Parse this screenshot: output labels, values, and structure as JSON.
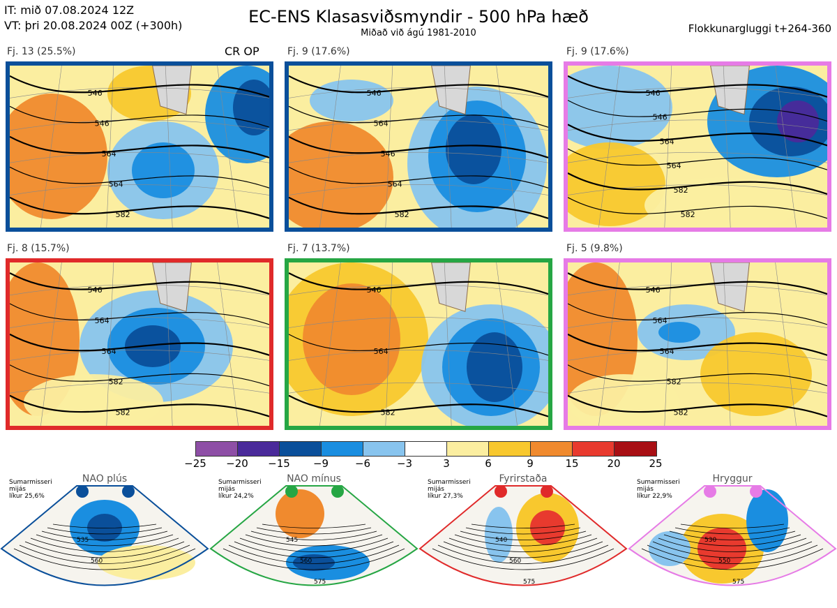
{
  "header": {
    "issue_time": "IT: mið 07.08.2024 12Z",
    "valid_time": "VT: þri 20.08.2024 00Z  (+300h)",
    "title": "EC-ENS Klasasviðsmyndir - 500 hPa hæð",
    "subtitle": "Miðað við ágú 1981-2010",
    "window": "Flokkunargluggi t+264-360"
  },
  "panels": [
    {
      "label": "Fj. 13 (25.5%)",
      "extra": "CR OP",
      "border_color": "#0a4f9a",
      "contours": [
        "546",
        "546",
        "564",
        "564",
        "582"
      ]
    },
    {
      "label": "Fj. 9 (17.6%)",
      "extra": "",
      "border_color": "#0a4f9a",
      "contours": [
        "546",
        "564",
        "546",
        "564",
        "582"
      ]
    },
    {
      "label": "Fj. 9 (17.6%)",
      "extra": "",
      "border_color": "#e67be6",
      "contours": [
        "546",
        "546",
        "564",
        "564",
        "582",
        "582"
      ]
    },
    {
      "label": "Fj. 8 (15.7%)",
      "extra": "",
      "border_color": "#e02a2a",
      "contours": [
        "546",
        "564",
        "564",
        "582",
        "582"
      ]
    },
    {
      "label": "Fj. 7 (13.7%)",
      "extra": "",
      "border_color": "#26a644",
      "contours": [
        "546",
        "564",
        "582"
      ]
    },
    {
      "label": "Fj. 5 (9.8%)",
      "extra": "",
      "border_color": "#e67be6",
      "contours": [
        "546",
        "564",
        "564",
        "582",
        "582"
      ]
    }
  ],
  "colorbar": {
    "colors": [
      "#8e4fa6",
      "#4a2a9a",
      "#0a4f9a",
      "#1a8ee0",
      "#88c4ee",
      "#ffffff",
      "#fbeea0",
      "#f8c82e",
      "#f08a2e",
      "#e83a2e",
      "#a80f14"
    ],
    "ticks": [
      "−25",
      "−20",
      "−15",
      "−9",
      "−6",
      "−3",
      "3",
      "6",
      "9",
      "15",
      "20",
      "25"
    ]
  },
  "regimes": [
    {
      "name": "NAO plús",
      "info_lines": [
        "Sumarmisseri",
        "mijás",
        "líkur 25,6%"
      ],
      "color": "#0a4f9a",
      "contours": [
        "535",
        "560"
      ]
    },
    {
      "name": "NAO mínus",
      "info_lines": [
        "Sumarmisseri",
        "mijás",
        "líkur 24,2%"
      ],
      "color": "#26a644",
      "contours": [
        "545",
        "560",
        "575"
      ]
    },
    {
      "name": "Fyrirstaða",
      "info_lines": [
        "Sumarmisseri",
        "mijás",
        "líkur 27,3%"
      ],
      "color": "#e02a2a",
      "contours": [
        "540",
        "560",
        "575"
      ]
    },
    {
      "name": "Hryggur",
      "info_lines": [
        "Sumarmisseri",
        "mijás",
        "líkur 22,9%"
      ],
      "color": "#e67be6",
      "contours": [
        "530",
        "550",
        "575"
      ]
    }
  ]
}
